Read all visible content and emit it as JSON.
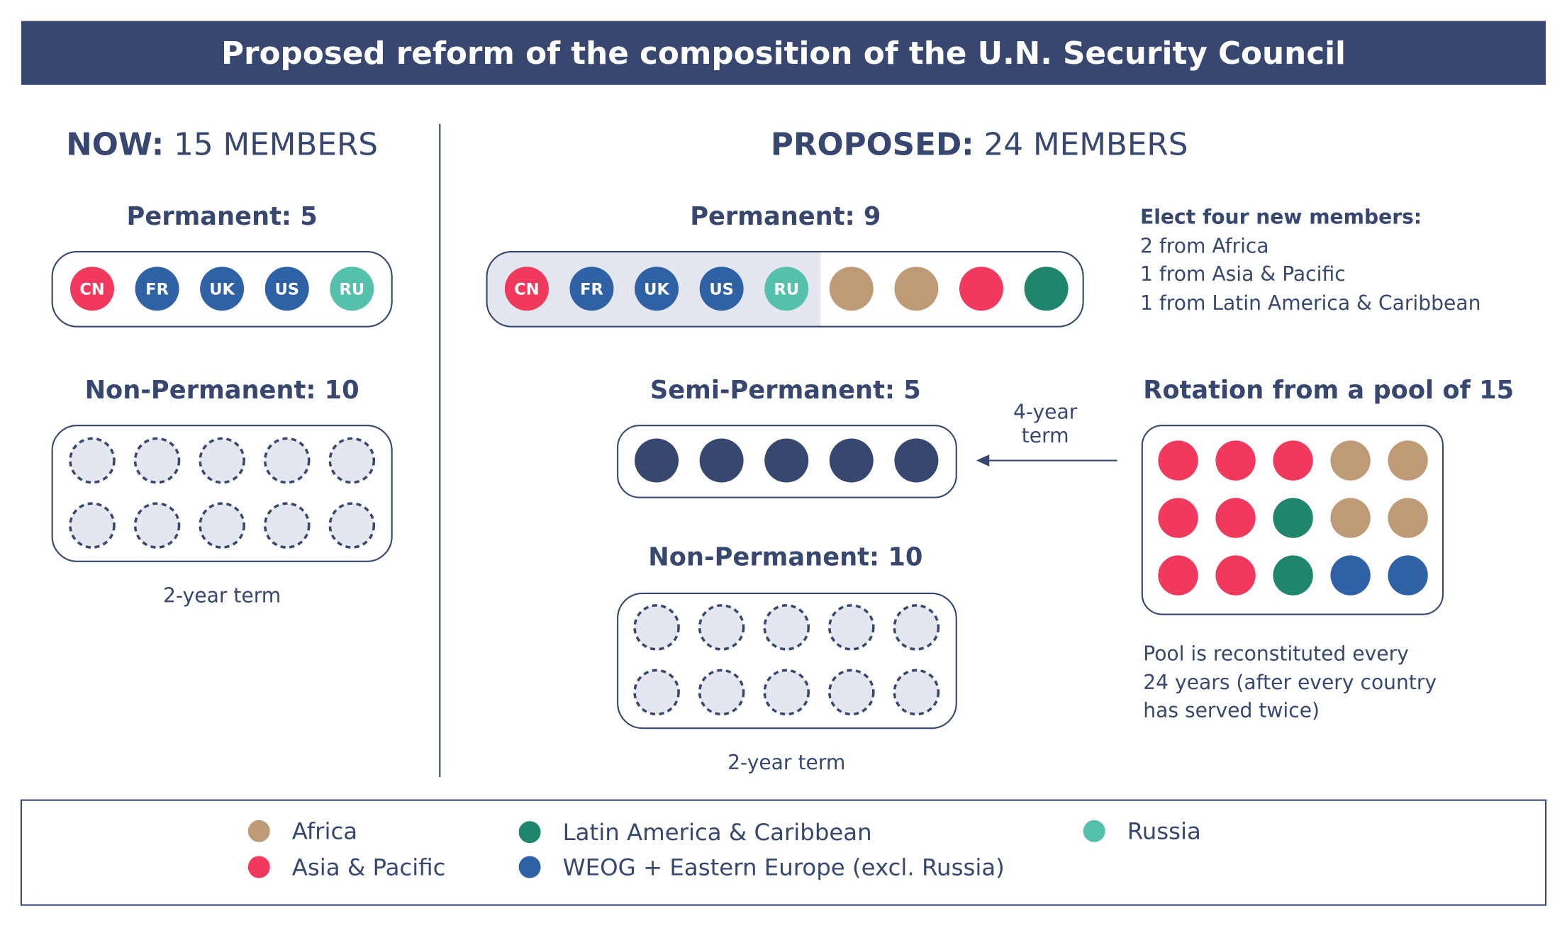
{
  "title": "Proposed reform of the composition of the U.N. Security Council",
  "colors": {
    "navy": "#37476f",
    "africa": "#be9a76",
    "asia_pacific": "#f0395c",
    "latin_america": "#1f856d",
    "weog": "#2f62a5",
    "russia": "#55c0ab",
    "empty": "#e4e7ef"
  },
  "now": {
    "header_bold": "NOW:",
    "header_rest": " 15 MEMBERS",
    "permanent_label": "Permanent: 5",
    "permanent_members": [
      {
        "code": "CN",
        "group": "asia_pacific"
      },
      {
        "code": "FR",
        "group": "weog"
      },
      {
        "code": "UK",
        "group": "weog"
      },
      {
        "code": "US",
        "group": "weog"
      },
      {
        "code": "RU",
        "group": "russia"
      }
    ],
    "nonpermanent_label": "Non-Permanent: 10",
    "nonpermanent_count": 10,
    "term": "2-year term"
  },
  "proposed": {
    "header_bold": "PROPOSED:",
    "header_rest": " 24 MEMBERS",
    "permanent_label": "Permanent: 9",
    "permanent_members": [
      {
        "code": "CN",
        "group": "asia_pacific"
      },
      {
        "code": "FR",
        "group": "weog"
      },
      {
        "code": "UK",
        "group": "weog"
      },
      {
        "code": "US",
        "group": "weog"
      },
      {
        "code": "RU",
        "group": "russia"
      },
      {
        "code": "",
        "group": "africa"
      },
      {
        "code": "",
        "group": "africa"
      },
      {
        "code": "",
        "group": "asia_pacific"
      },
      {
        "code": "",
        "group": "latin_america"
      }
    ],
    "new_members_title": "Elect four new members:",
    "new_members_lines": [
      "2 from Africa",
      "1 from Asia & Pacific",
      "1 from Latin America & Caribbean"
    ],
    "semipermanent_label": "Semi-Permanent: 5",
    "semipermanent_count": 5,
    "arrow_label": [
      "4-year",
      "term"
    ],
    "pool_title": "Rotation from a pool of 15",
    "pool": [
      [
        "asia_pacific",
        "asia_pacific",
        "asia_pacific",
        "africa",
        "africa"
      ],
      [
        "asia_pacific",
        "asia_pacific",
        "latin_america",
        "africa",
        "africa"
      ],
      [
        "asia_pacific",
        "asia_pacific",
        "latin_america",
        "weog",
        "weog"
      ]
    ],
    "pool_note": [
      "Pool is reconstituted every",
      "24 years (after every country",
      "has served twice)"
    ],
    "nonpermanent_label": "Non-Permanent: 10",
    "nonpermanent_count": 10,
    "term": "2-year term"
  },
  "legend": [
    {
      "label": "Africa",
      "group": "africa"
    },
    {
      "label": "Asia & Pacific",
      "group": "asia_pacific"
    },
    {
      "label": "Latin America & Caribbean",
      "group": "latin_america"
    },
    {
      "label": "WEOG + Eastern Europe (excl. Russia)",
      "group": "weog"
    },
    {
      "label": "Russia",
      "group": "russia"
    }
  ]
}
